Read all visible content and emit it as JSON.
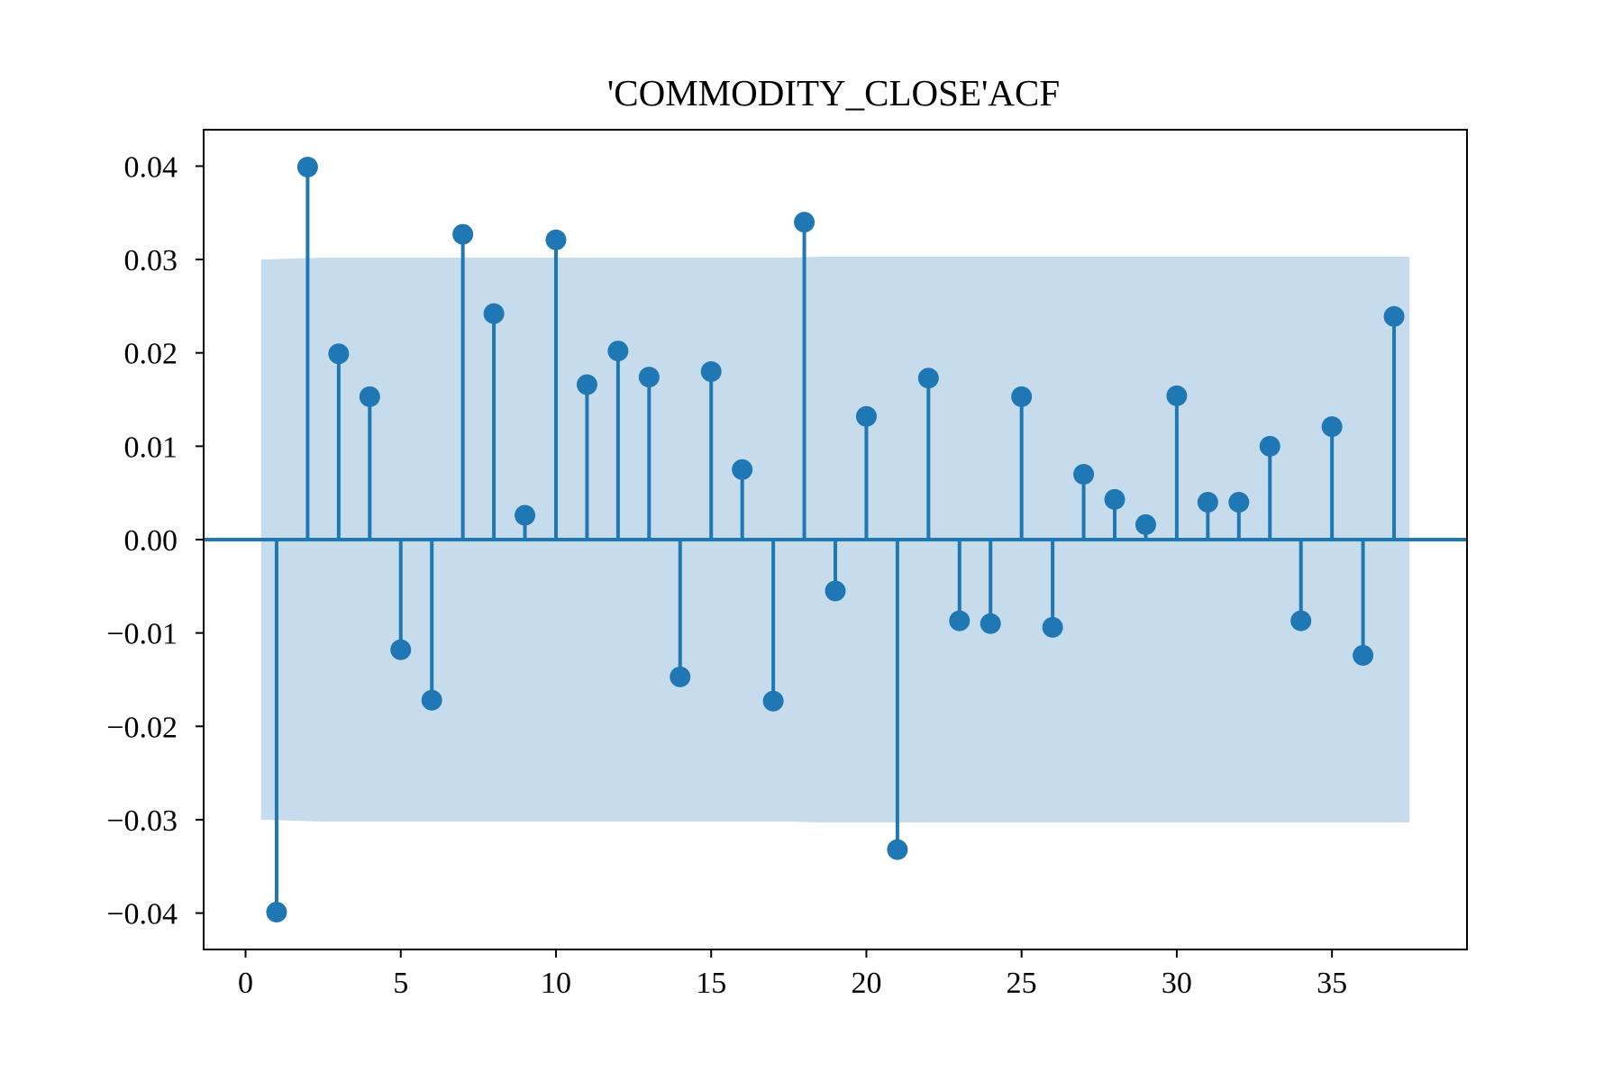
{
  "chart_data": {
    "type": "stem",
    "title": "'COMMODITY_CLOSE'ACF",
    "xlabel": "",
    "ylabel": "",
    "xlim": [
      -1.35,
      39.35
    ],
    "ylim": [
      -0.0439,
      0.0439
    ],
    "x_ticks": [
      0,
      5,
      10,
      15,
      20,
      25,
      30,
      35
    ],
    "x_tick_labels": [
      "0",
      "5",
      "10",
      "15",
      "20",
      "25",
      "30",
      "35"
    ],
    "y_ticks": [
      0.04,
      0.03,
      0.02,
      0.01,
      0.0,
      -0.01,
      -0.02,
      -0.03,
      -0.04
    ],
    "y_tick_labels": [
      "0.04",
      "0.03",
      "0.02",
      "0.01",
      "0.00",
      "−0.01",
      "−0.02",
      "−0.03",
      "−0.04"
    ],
    "grid": false,
    "legend": "none",
    "colors": {
      "stem": "#1f77b4",
      "confidence_band": "#c6dcec",
      "frame": "#000000"
    },
    "confidence_band": {
      "x": [
        0.5,
        1.5,
        2.5,
        3.5,
        4.5,
        5.5,
        6.5,
        7.5,
        8.5,
        9.5,
        10.5,
        11.5,
        12.5,
        13.5,
        14.5,
        15.5,
        16.5,
        17.5,
        18.5,
        19.5,
        20.5,
        21.5,
        22.5,
        23.5,
        24.5,
        25.5,
        26.5,
        27.5,
        28.5,
        29.5,
        30.5,
        31.5,
        32.5,
        33.5,
        34.5,
        35.5,
        36.5,
        37.5
      ],
      "upper": [
        0.03,
        0.0301,
        0.0302,
        0.0302,
        0.0302,
        0.0302,
        0.0302,
        0.0302,
        0.0302,
        0.0302,
        0.0302,
        0.0302,
        0.0302,
        0.0302,
        0.0302,
        0.0302,
        0.0302,
        0.0302,
        0.0303,
        0.0303,
        0.0303,
        0.0303,
        0.0303,
        0.0303,
        0.0303,
        0.0303,
        0.0303,
        0.0303,
        0.0303,
        0.0303,
        0.0303,
        0.0303,
        0.0303,
        0.0303,
        0.0303,
        0.0303,
        0.0303,
        0.0303
      ],
      "lower": [
        -0.03,
        -0.0301,
        -0.0302,
        -0.0302,
        -0.0302,
        -0.0302,
        -0.0302,
        -0.0302,
        -0.0302,
        -0.0302,
        -0.0302,
        -0.0302,
        -0.0302,
        -0.0302,
        -0.0302,
        -0.0302,
        -0.0302,
        -0.0302,
        -0.0303,
        -0.0303,
        -0.0303,
        -0.0303,
        -0.0303,
        -0.0303,
        -0.0303,
        -0.0303,
        -0.0303,
        -0.0303,
        -0.0303,
        -0.0303,
        -0.0303,
        -0.0303,
        -0.0303,
        -0.0303,
        -0.0303,
        -0.0303,
        -0.0303,
        -0.0303
      ]
    },
    "lags": [
      1,
      2,
      3,
      4,
      5,
      6,
      7,
      8,
      9,
      10,
      11,
      12,
      13,
      14,
      15,
      16,
      17,
      18,
      19,
      20,
      21,
      22,
      23,
      24,
      25,
      26,
      27,
      28,
      29,
      30,
      31,
      32,
      33,
      34,
      35,
      36,
      37
    ],
    "values": [
      -0.0399,
      0.0399,
      0.0199,
      0.0153,
      -0.0118,
      -0.0172,
      0.0327,
      0.0242,
      0.0026,
      0.0321,
      0.0166,
      0.0202,
      0.0174,
      -0.0147,
      0.018,
      0.0075,
      -0.0173,
      0.034,
      -0.0055,
      0.0132,
      -0.0332,
      0.0173,
      -0.0087,
      -0.009,
      0.0153,
      -0.0094,
      0.007,
      0.0043,
      0.0016,
      0.0154,
      0.004,
      0.004,
      0.01,
      -0.0087,
      0.0121,
      -0.0124,
      0.0239
    ]
  }
}
